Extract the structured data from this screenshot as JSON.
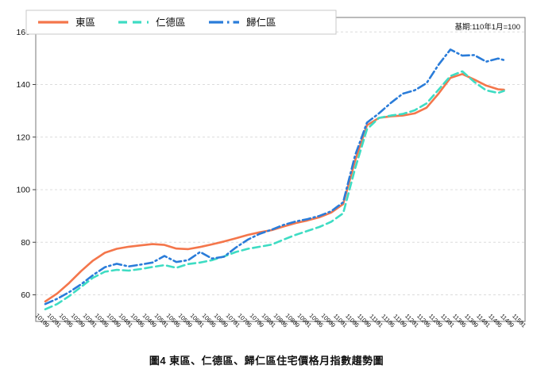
{
  "caption": "圖4 東區、仁德區、歸仁區住宅價格月指數趨勢圖",
  "note": "基期:110年1月=100",
  "colors": {
    "east": "#F4764B",
    "rende": "#3EDCC3",
    "guiren": "#2A7CD9",
    "grid": "#dcdcdc",
    "spine": "#777777",
    "legend_border": "#c9c9c9"
  },
  "chart_data": {
    "type": "line",
    "title": "",
    "xlabel": "",
    "ylabel": "",
    "note": "基期:110年1月=100",
    "ylim": [
      50,
      165.5
    ],
    "yticks": [
      60,
      80,
      100,
      120,
      140,
      160
    ],
    "grid": "horizontal-dashed",
    "legend_position": "top-left-box",
    "x_tick_labels": [
      "10109",
      "10201",
      "10205",
      "10209",
      "10301",
      "10305",
      "10309",
      "10401",
      "10405",
      "10409",
      "10501",
      "10505",
      "10509",
      "10601",
      "10605",
      "10609",
      "10701",
      "10705",
      "10709",
      "10801",
      "10805",
      "10809",
      "10901",
      "10905",
      "10909",
      "11001",
      "11005",
      "11009",
      "11101",
      "11105",
      "11109",
      "11201",
      "11205",
      "11209",
      "11301",
      "11305",
      "11309",
      "11401",
      "11405",
      "11409",
      "11501"
    ],
    "x_tick_months": [
      0,
      4,
      8,
      12,
      16,
      20,
      24,
      28,
      32,
      36,
      40,
      44,
      48,
      52,
      56,
      60,
      64,
      68,
      72,
      76,
      80,
      84,
      88,
      92,
      96,
      100,
      104,
      108,
      112,
      116,
      120,
      124,
      128,
      132,
      136,
      140,
      144,
      148,
      152,
      156,
      160
    ],
    "x_months": [
      0,
      4,
      8,
      12,
      16,
      20,
      24,
      28,
      32,
      36,
      40,
      44,
      48,
      52,
      56,
      60,
      64,
      68,
      72,
      76,
      80,
      84,
      88,
      92,
      96,
      100,
      104,
      108,
      112,
      116,
      120,
      124,
      128,
      132,
      136,
      140,
      144,
      148,
      152,
      154
    ],
    "series": [
      {
        "name": "東區",
        "key": "east",
        "color": "#F4764B",
        "line_style": "solid",
        "values": [
          57.5,
          60.5,
          64.5,
          69,
          73,
          76,
          77.5,
          78.3,
          78.8,
          79.3,
          79.0,
          77.6,
          77.4,
          78.2,
          79.2,
          80.3,
          81.5,
          82.8,
          83.8,
          84.6,
          86.0,
          87.3,
          88.3,
          89.5,
          91.3,
          94.5,
          111,
          124.5,
          127.3,
          127.9,
          128.2,
          129.0,
          131.2,
          136.5,
          142.5,
          144.0,
          141.9,
          139.6,
          138.2,
          138.0
        ]
      },
      {
        "name": "仁德區",
        "key": "rende",
        "color": "#3EDCC3",
        "line_style": "dashed",
        "values": [
          54.5,
          56.5,
          59.5,
          63,
          66.5,
          68.8,
          69.5,
          69.2,
          69.8,
          70.6,
          71.3,
          70.3,
          71.7,
          72.3,
          73.2,
          74.6,
          76.3,
          77.5,
          78.3,
          79.1,
          81.0,
          82.8,
          84.3,
          85.8,
          87.8,
          91.0,
          108,
          123,
          127.3,
          128.2,
          128.8,
          130.2,
          132.8,
          138.0,
          143.2,
          145.0,
          141.0,
          137.8,
          136.8,
          137.6
        ]
      },
      {
        "name": "歸仁區",
        "key": "guiren",
        "color": "#2A7CD9",
        "line_style": "dashdot",
        "values": [
          56.5,
          58.5,
          61,
          64,
          67.5,
          70.5,
          71.8,
          70.8,
          71.5,
          72.3,
          74.8,
          72.5,
          73.2,
          76.3,
          73.8,
          74.5,
          78.0,
          81.0,
          83.2,
          84.8,
          86.6,
          87.9,
          88.8,
          90.0,
          91.8,
          95.2,
          113,
          125.5,
          129.0,
          133.0,
          136.5,
          137.8,
          140.5,
          147.5,
          153.3,
          151.0,
          151.2,
          148.7,
          149.9,
          149.3
        ]
      }
    ]
  }
}
